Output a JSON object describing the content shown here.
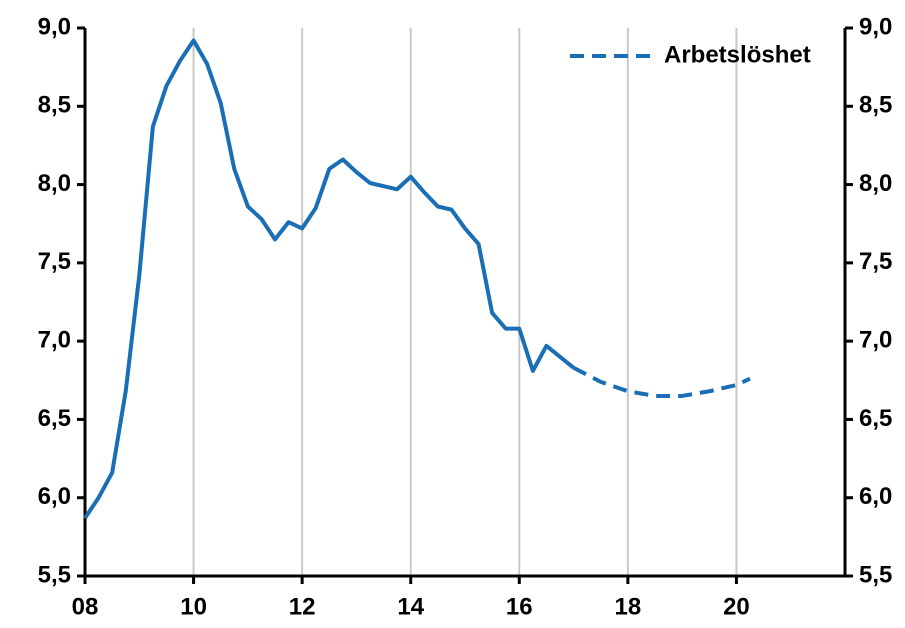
{
  "chart_data": {
    "type": "line",
    "series": [
      {
        "color": "#1a6eb5",
        "dashed": false,
        "x": [
          2008.0,
          2008.25,
          2008.5,
          2008.75,
          2009.0,
          2009.25,
          2009.5,
          2009.75,
          2010.0,
          2010.25,
          2010.5,
          2010.75,
          2011.0,
          2011.25,
          2011.5,
          2011.75,
          2012.0,
          2012.25,
          2012.5,
          2012.75,
          2013.0,
          2013.25,
          2013.5,
          2013.75,
          2014.0,
          2014.25,
          2014.5,
          2014.75,
          2015.0,
          2015.25,
          2015.5,
          2015.75,
          2016.0,
          2016.25,
          2016.5,
          2016.75,
          2017.0
        ],
        "values": [
          5.87,
          6.0,
          6.16,
          6.68,
          7.42,
          8.37,
          8.63,
          8.79,
          8.92,
          8.77,
          8.52,
          8.1,
          7.86,
          7.78,
          7.65,
          7.76,
          7.72,
          7.85,
          8.1,
          8.16,
          8.08,
          8.01,
          7.99,
          7.97,
          8.05,
          7.95,
          7.86,
          7.84,
          7.72,
          7.62,
          7.18,
          7.08,
          7.08,
          6.81,
          6.97,
          6.9,
          6.83
        ]
      },
      {
        "name": "Arbetslöshet",
        "color": "#1a6eb5",
        "dashed": true,
        "x": [
          2017.0,
          2017.5,
          2018.0,
          2018.5,
          2019.0,
          2019.5,
          2020.0,
          2020.25
        ],
        "values": [
          6.83,
          6.74,
          6.68,
          6.65,
          6.65,
          6.68,
          6.72,
          6.76
        ]
      }
    ],
    "xlim": [
      2008,
      2022
    ],
    "xticks": [
      {
        "value": 2008,
        "label": "08"
      },
      {
        "value": 2010,
        "label": "10"
      },
      {
        "value": 2012,
        "label": "12"
      },
      {
        "value": 2014,
        "label": "14"
      },
      {
        "value": 2016,
        "label": "16"
      },
      {
        "value": 2018,
        "label": "18"
      },
      {
        "value": 2020,
        "label": "20"
      }
    ],
    "ylim": [
      5.5,
      9.0
    ],
    "yticks": [
      {
        "value": 5.5,
        "label": "5,5"
      },
      {
        "value": 6.0,
        "label": "6,0"
      },
      {
        "value": 6.5,
        "label": "6,5"
      },
      {
        "value": 7.0,
        "label": "7,0"
      },
      {
        "value": 7.5,
        "label": "7,5"
      },
      {
        "value": 8.0,
        "label": "8,0"
      },
      {
        "value": 8.5,
        "label": "8,5"
      },
      {
        "value": 9.0,
        "label": "9,0"
      }
    ],
    "grid": "x",
    "legend": "top-right"
  }
}
